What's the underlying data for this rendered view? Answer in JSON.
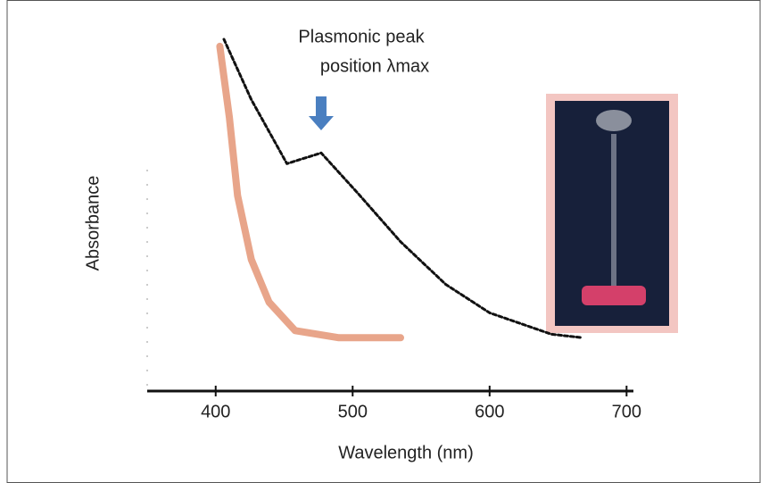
{
  "chart_data": {
    "type": "line",
    "annotation": [
      "Plasmonic peak",
      "position λmax"
    ],
    "xlabel": "Wavelength (nm)",
    "ylabel": "Absorbance",
    "xlim": [
      350,
      705
    ],
    "xticks": [
      400,
      500,
      600,
      700
    ],
    "ylim": [
      0,
      1
    ],
    "annotation_x": 477,
    "series": [
      {
        "color": "#111111",
        "x": [
          406,
          426,
          452,
          477,
          503,
          535,
          568,
          600,
          645,
          668
        ],
        "values": [
          0.99,
          0.82,
          0.64,
          0.67,
          0.56,
          0.42,
          0.3,
          0.22,
          0.16,
          0.15
        ]
      },
      {
        "color": "#e8a58a",
        "x": [
          403,
          410,
          416,
          426,
          439,
          458,
          490,
          535
        ],
        "values": [
          0.97,
          0.77,
          0.55,
          0.37,
          0.25,
          0.17,
          0.15,
          0.15
        ]
      }
    ]
  }
}
